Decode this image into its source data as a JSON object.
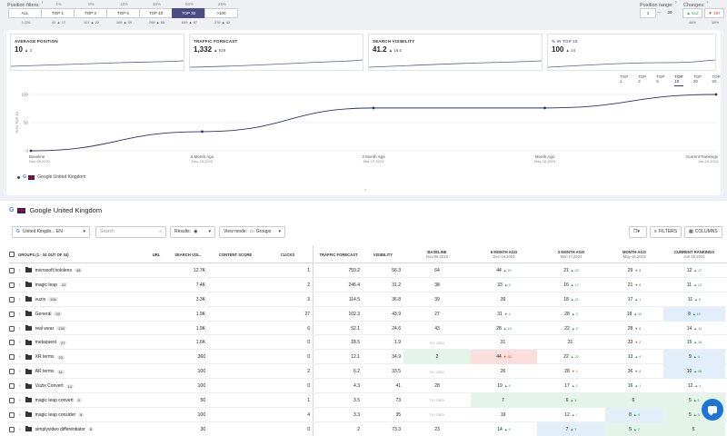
{
  "position_filters": {
    "label": "Position filters:",
    "help": "?",
    "top_pcts": [
      "",
      "4%",
      "8%",
      "18%",
      "36%",
      "60%",
      "26%"
    ],
    "tabs": [
      {
        "label": "ALL",
        "active": false
      },
      {
        "label": "TOP 1",
        "active": false
      },
      {
        "label": "TOP 3",
        "active": false
      },
      {
        "label": "TOP 5",
        "active": false
      },
      {
        "label": "TOP 10",
        "active": false
      },
      {
        "label": "TOP 30",
        "active": true
      },
      {
        "label": ">100",
        "active": false
      }
    ],
    "sub": [
      "1,226",
      "42 ▲ 12",
      "101 ▲ 22",
      "168 ▲ 50",
      "268 ▲ 55",
      "649 ▲ 87",
      "276 ▲ 42"
    ]
  },
  "position_range": {
    "label": "Position range:",
    "help": "?",
    "from": "1",
    "dash": "—",
    "to": "30"
  },
  "changes": {
    "label": "Changes:",
    "help": "?",
    "up": "▲ 512",
    "down": "▼ 197",
    "up_pct": "48%",
    "down_pct": "18%"
  },
  "kpis": [
    {
      "title": "AVERAGE POSITION",
      "value": "10",
      "delta": "▲ 2",
      "active": false
    },
    {
      "title": "TRAFFIC FORECAST",
      "value": "1,332",
      "delta": "▲ 829",
      "active": false
    },
    {
      "title": "SEARCH VISIBILITY",
      "value": "41.2",
      "delta": "▲ 16.5",
      "active": false
    },
    {
      "title": "% IN TOP 10",
      "value": "100",
      "delta": "▲ 24",
      "active": true
    }
  ],
  "chart_tabs": [
    {
      "label": "TOP 1",
      "active": false
    },
    {
      "label": "TOP 3",
      "active": false
    },
    {
      "label": "TOP 5",
      "active": false
    },
    {
      "label": "TOP 10",
      "active": true
    },
    {
      "label": "TOP 30",
      "active": false
    },
    {
      "label": "TOP 50",
      "active": false
    }
  ],
  "chart_data": {
    "type": "line",
    "ylabel": "% IN TOP 10",
    "ylim": [
      0,
      100
    ],
    "yticks": [
      "0",
      "50",
      "100"
    ],
    "x": [
      "Baseline",
      "6 Month Ago",
      "3 Month Ago",
      "Month Ago",
      "Current Rankings"
    ],
    "x_dates": [
      "Nov-08,2023",
      "Dec-18,2023",
      "Mar-17,2024",
      "May-16,2024",
      "Jun-15,2024"
    ],
    "series": [
      {
        "name": "Google United Kingdom",
        "values": [
          0,
          34,
          76,
          76,
          100
        ]
      }
    ],
    "grid": true
  },
  "legend": {
    "engine_letter": "G",
    "label": "Google United Kingdom"
  },
  "collapse_glyph": "⌃",
  "table_section": {
    "engine_letter": "G",
    "title": "Google United Kingdom"
  },
  "controls": {
    "engine_select": "United Kingdo... EN",
    "search_placeholder": "Search",
    "results_label": "Results:",
    "view_mode_label": "View mode:",
    "view_mode_value": "Groups",
    "filters_label": "FILTERS",
    "columns_label": "COLUMNS"
  },
  "table": {
    "headers": {
      "groups": "GROUPS (1 - 34 OUT OF 34)",
      "url": "URL",
      "search_vol": "SEARCH VOL.",
      "content_score": "CONTENT SCORE",
      "clicks": "CLICKS",
      "traffic_forecast": "TRAFFIC FORECAST",
      "visibility": "VISIBILITY",
      "baseline": "BASELINE",
      "baseline_date": "Nov-08,2023",
      "m6": "6 MONTH AGO",
      "m6_date": "Dec-18,2023",
      "m3": "3 MONTH AGO",
      "m3_date": "Mar-17,2024",
      "m1": "MONTH AGO",
      "m1_date": "May-16,2024",
      "current": "CURRENT RANKINGS",
      "current_date": "Jun-15,2024"
    },
    "rows": [
      {
        "name": "microsoft hololens",
        "count": "48",
        "vol": "12.7K",
        "clicks": "1",
        "traffic": "759.2",
        "vis": "56.3",
        "baseline": "64",
        "m6": "44",
        "m6d": "▲ 20",
        "m6dir": "up",
        "m3": "21",
        "m3d": "▲ 23",
        "m3dir": "up",
        "m1": "29",
        "m1d": "▼ 8",
        "m1dir": "down",
        "cur": "12",
        "curd": "▲ 17",
        "curdir": "up",
        "bbase": "",
        "bm6": "",
        "bm3": "",
        "bm1": "",
        "bcur": ""
      },
      {
        "name": "magic leap",
        "count": "41",
        "vol": "7.4K",
        "clicks": "2",
        "traffic": "246.4",
        "vis": "31.2",
        "baseline": "38",
        "m6": "33",
        "m6d": "▲ 5",
        "m6dir": "up",
        "m3": "16",
        "m3d": "▲ 17",
        "m3dir": "up",
        "m1": "21",
        "m1d": "▼ 5",
        "m1dir": "down",
        "cur": "11",
        "curd": "▲ 10",
        "curdir": "up",
        "bbase": "",
        "bm6": "",
        "bm3": "",
        "bm1": "",
        "bcur": ""
      },
      {
        "name": "vuzix",
        "count": "106",
        "vol": "3.3K",
        "clicks": "3",
        "traffic": "114.5",
        "vis": "36.8",
        "baseline": "39",
        "m6": "39",
        "m6d": "",
        "m6dir": "",
        "m3": "18",
        "m3d": "▲ 21",
        "m3dir": "up",
        "m1": "17",
        "m1d": "▲ 1",
        "m1dir": "up",
        "cur": "11",
        "curd": "▲ 6",
        "curdir": "up",
        "bbase": "",
        "bm6": "",
        "bm3": "",
        "bm1": "",
        "bcur": ""
      },
      {
        "name": "General",
        "count": "42",
        "vol": "1.9K",
        "clicks": "27",
        "traffic": "102.3",
        "vis": "43.9",
        "baseline": "27",
        "m6": "31",
        "m6d": "▼ 4",
        "m6dir": "down",
        "m3": "28",
        "m3d": "▲ 3",
        "m3dir": "up",
        "m1": "18",
        "m1d": "▲ 10",
        "m1dir": "up",
        "cur": "8",
        "curd": "▲ 10",
        "curdir": "up",
        "bbase": "",
        "bm6": "",
        "bm3": "",
        "bm1": "",
        "bcur": "blue"
      },
      {
        "name": "real wear",
        "count": "130",
        "vol": "1.9K",
        "clicks": "6",
        "traffic": "52.1",
        "vis": "24.6",
        "baseline": "43",
        "m6": "28",
        "m6d": "▲ 15",
        "m6dir": "up",
        "m3": "22",
        "m3d": "▲ 6",
        "m3dir": "up",
        "m1": "28",
        "m1d": "▼ 6",
        "m1dir": "down",
        "cur": "14",
        "curd": "▲ 14",
        "curdir": "up",
        "bbase": "",
        "bm6": "",
        "bm3": "",
        "bm1": "",
        "bcur": ""
      },
      {
        "name": "metaquest",
        "count": "27",
        "vol": "1.6K",
        "clicks": "0",
        "traffic": "18.5",
        "vis": "1.9",
        "baseline": "No data",
        "m6": "31",
        "m6d": "",
        "m6dir": "",
        "m3": "31",
        "m3d": "",
        "m3dir": "",
        "m1": "33",
        "m1d": "▼ 2",
        "m1dir": "down",
        "cur": "15",
        "curd": "▲ 18",
        "curdir": "up",
        "bbase": "nod",
        "bm6": "",
        "bm3": "",
        "bm1": "",
        "bcur": ""
      },
      {
        "name": "XR terms",
        "count": "23",
        "vol": "360",
        "clicks": "0",
        "traffic": "12.1",
        "vis": "34.9",
        "baseline": "2",
        "m6": "44",
        "m6d": "▼ 42",
        "m6dir": "down",
        "m3": "22",
        "m3d": "▲ 22",
        "m3dir": "up",
        "m1": "13",
        "m1d": "▲ 9",
        "m1dir": "up",
        "cur": "9",
        "curd": "▲ 4",
        "curdir": "up",
        "bbase": "green",
        "bm6": "red",
        "bm3": "",
        "bm1": "",
        "bcur": "blue"
      },
      {
        "name": "AR terms",
        "count": "11",
        "vol": "100",
        "clicks": "2",
        "traffic": "6.2",
        "vis": "33.5",
        "baseline": "No data",
        "m6": "26",
        "m6d": "",
        "m6dir": "",
        "m3": "28",
        "m3d": "▼ 2",
        "m3dir": "down",
        "m1": "36",
        "m1d": "▼ 8",
        "m1dir": "down",
        "cur": "10",
        "curd": "▲ 26",
        "curdir": "up",
        "bbase": "nod",
        "bm6": "",
        "bm3": "",
        "bm1": "",
        "bcur": "blue"
      },
      {
        "name": "Vuzix Convert",
        "count": "14",
        "vol": "100",
        "clicks": "0",
        "traffic": "4.3",
        "vis": "41",
        "baseline": "28",
        "m6": "19",
        "m6d": "▲ 9",
        "m6dir": "up",
        "m3": "17",
        "m3d": "▲ 2",
        "m3dir": "up",
        "m1": "16",
        "m1d": "▲ 1",
        "m1dir": "up",
        "cur": "12",
        "curd": "▲ 4",
        "curdir": "up",
        "bbase": "",
        "bm6": "",
        "bm3": "",
        "bm1": "",
        "bcur": ""
      },
      {
        "name": "magic leap convert",
        "count": "6",
        "vol": "50",
        "clicks": "1",
        "traffic": "3.5",
        "vis": "73",
        "baseline": "No data",
        "m6": "7",
        "m6d": "",
        "m6dir": "",
        "m3": "6",
        "m3d": "▲ 1",
        "m3dir": "up",
        "m1": "6",
        "m1d": "",
        "m1dir": "",
        "cur": "5",
        "curd": "▲ 1",
        "curdir": "up",
        "bbase": "nod",
        "bm6": "green",
        "bm3": "green",
        "bm1": "green",
        "bcur": "green"
      },
      {
        "name": "magic leap consider",
        "count": "8",
        "vol": "100",
        "clicks": "4",
        "traffic": "3.3",
        "vis": "35",
        "baseline": "No data",
        "m6": "19",
        "m6d": "",
        "m6dir": "",
        "m3": "12",
        "m3d": "▲ 7",
        "m3dir": "up",
        "m1": "8",
        "m1d": "▲ 4",
        "m1dir": "up",
        "cur": "5",
        "curd": "▲ 3",
        "curdir": "up",
        "bbase": "nod",
        "bm6": "",
        "bm3": "",
        "bm1": "blue",
        "bcur": "green"
      },
      {
        "name": "simplyvideo differentiator",
        "count": "5",
        "vol": "30",
        "clicks": "0",
        "traffic": "2",
        "vis": "73.3",
        "baseline": "23",
        "m6": "14",
        "m6d": "▲ 9",
        "m6dir": "up",
        "m3": "7",
        "m3d": "▲ 7",
        "m3dir": "up",
        "m1": "5",
        "m1d": "▲ 2",
        "m1dir": "up",
        "cur": "5",
        "curd": "",
        "curdir": "",
        "bbase": "",
        "bm6": "",
        "bm3": "blue",
        "bm1": "green",
        "bcur": "green"
      }
    ]
  },
  "chat_icon": "chat-bubble-icon"
}
